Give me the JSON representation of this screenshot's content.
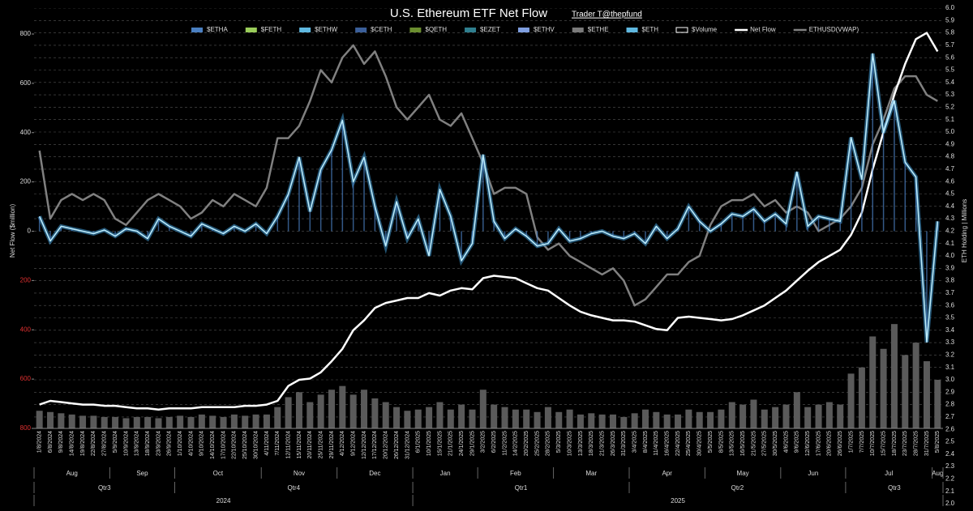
{
  "chart_data": {
    "type": "line",
    "title": "U.S. Ethereum ETF Net Flow",
    "subtitle": "Trader T@thepfund",
    "y_label": "Net Flow ($million)",
    "y2_label": "ETH Holding | Millions",
    "categories": [
      "1/8/2024",
      "6/8/2024",
      "9/8/2024",
      "14/8/2024",
      "19/8/2024",
      "22/8/2024",
      "27/8/2024",
      "5/9/2024",
      "10/9/2024",
      "13/9/2024",
      "18/9/2024",
      "23/9/2024",
      "26/9/2024",
      "1/10/2024",
      "4/10/2024",
      "9/10/2024",
      "14/10/2024",
      "17/10/2024",
      "22/10/2024",
      "25/10/2024",
      "30/10/2024",
      "4/11/2024",
      "7/11/2024",
      "12/11/2024",
      "15/11/2024",
      "20/11/2024",
      "25/11/2024",
      "29/11/2024",
      "4/12/2024",
      "9/12/2024",
      "12/12/2024",
      "17/12/2024",
      "20/12/2024",
      "26/12/2024",
      "31/12/2024",
      "6/1/2025",
      "10/1/2025",
      "15/1/2025",
      "21/1/2025",
      "24/1/2025",
      "29/1/2025",
      "3/2/2025",
      "6/2/2025",
      "11/2/2025",
      "14/2/2025",
      "20/2/2025",
      "25/2/2025",
      "28/2/2025",
      "5/3/2025",
      "10/3/2025",
      "13/3/2025",
      "18/3/2025",
      "21/3/2025",
      "26/3/2025",
      "31/3/2025",
      "3/4/2025",
      "8/4/2025",
      "11/4/2025",
      "16/4/2025",
      "22/4/2025",
      "25/4/2025",
      "30/4/2025",
      "5/5/2025",
      "8/5/2025",
      "13/5/2025",
      "16/5/2025",
      "21/5/2025",
      "27/5/2025",
      "30/5/2025",
      "4/6/2025",
      "9/6/2025",
      "12/6/2025",
      "17/6/2025",
      "20/6/2025",
      "26/6/2025",
      "1/7/2025",
      "7/7/2025",
      "10/7/2025",
      "15/7/2025",
      "18/7/2025",
      "23/7/2025",
      "28/7/2025",
      "31/7/2025",
      "5/8/2025"
    ],
    "months": [
      "Aug",
      "Sep",
      "Oct",
      "Nov",
      "Dec",
      "Jan",
      "Feb",
      "Mar",
      "Apr",
      "May",
      "Jun",
      "Jul",
      "Aug"
    ],
    "quarters": [
      "Qtr3",
      "Qtr4",
      "Qtr1",
      "Qtr2",
      "Qtr3"
    ],
    "years": [
      "2024",
      "2025"
    ],
    "series": [
      {
        "name": "$Volume",
        "kind": "bar",
        "axis": "y2",
        "color": "#5a5a5a",
        "values": [
          2.75,
          2.74,
          2.73,
          2.72,
          2.71,
          2.71,
          2.7,
          2.7,
          2.69,
          2.7,
          2.7,
          2.69,
          2.7,
          2.71,
          2.7,
          2.72,
          2.71,
          2.7,
          2.72,
          2.71,
          2.72,
          2.72,
          2.78,
          2.86,
          2.9,
          2.82,
          2.88,
          2.92,
          2.95,
          2.88,
          2.92,
          2.85,
          2.82,
          2.78,
          2.75,
          2.76,
          2.78,
          2.82,
          2.76,
          2.8,
          2.76,
          2.92,
          2.8,
          2.78,
          2.76,
          2.76,
          2.74,
          2.78,
          2.74,
          2.76,
          2.72,
          2.73,
          2.72,
          2.72,
          2.7,
          2.73,
          2.76,
          2.74,
          2.72,
          2.72,
          2.76,
          2.74,
          2.74,
          2.76,
          2.82,
          2.8,
          2.84,
          2.76,
          2.78,
          2.8,
          2.9,
          2.78,
          2.8,
          2.82,
          2.8,
          3.05,
          3.1,
          3.35,
          3.25,
          3.45,
          3.2,
          3.3,
          3.15,
          3.0
        ]
      },
      {
        "name": "ETHUSD(VWAP)",
        "kind": "line",
        "axis": "y2",
        "color": "#808080",
        "values": [
          4.85,
          4.3,
          4.45,
          4.5,
          4.45,
          4.5,
          4.45,
          4.3,
          4.25,
          4.35,
          4.45,
          4.5,
          4.45,
          4.4,
          4.3,
          4.35,
          4.45,
          4.4,
          4.5,
          4.45,
          4.4,
          4.55,
          4.95,
          4.95,
          5.05,
          5.25,
          5.5,
          5.4,
          5.6,
          5.7,
          5.55,
          5.65,
          5.45,
          5.2,
          5.1,
          5.2,
          5.3,
          5.1,
          5.05,
          5.15,
          4.95,
          4.75,
          4.5,
          4.55,
          4.55,
          4.5,
          4.15,
          4.05,
          4.1,
          4.0,
          3.95,
          3.9,
          3.85,
          3.9,
          3.8,
          3.6,
          3.65,
          3.75,
          3.85,
          3.85,
          3.95,
          4.0,
          4.25,
          4.4,
          4.45,
          4.45,
          4.5,
          4.4,
          4.45,
          4.35,
          4.4,
          4.35,
          4.2,
          4.25,
          4.3,
          4.4,
          4.55,
          4.9,
          5.1,
          5.35,
          5.45,
          5.45,
          5.3,
          5.25
        ]
      },
      {
        "name": "Net Flow",
        "kind": "line",
        "axis": "y2",
        "color": "#ffffff",
        "values": [
          2.8,
          2.83,
          2.82,
          2.81,
          2.8,
          2.8,
          2.79,
          2.79,
          2.78,
          2.77,
          2.77,
          2.76,
          2.77,
          2.77,
          2.77,
          2.78,
          2.78,
          2.78,
          2.78,
          2.79,
          2.79,
          2.8,
          2.83,
          2.95,
          3.0,
          3.01,
          3.06,
          3.15,
          3.25,
          3.4,
          3.48,
          3.58,
          3.62,
          3.64,
          3.66,
          3.66,
          3.7,
          3.68,
          3.72,
          3.74,
          3.73,
          3.82,
          3.84,
          3.83,
          3.82,
          3.78,
          3.74,
          3.72,
          3.66,
          3.6,
          3.55,
          3.52,
          3.5,
          3.48,
          3.48,
          3.47,
          3.44,
          3.41,
          3.4,
          3.5,
          3.51,
          3.5,
          3.49,
          3.48,
          3.49,
          3.52,
          3.56,
          3.6,
          3.66,
          3.72,
          3.8,
          3.88,
          3.95,
          4.0,
          4.05,
          4.17,
          4.35,
          4.7,
          5.0,
          5.3,
          5.55,
          5.75,
          5.8,
          5.65
        ]
      },
      {
        "name": "$ETH",
        "kind": "glow",
        "axis": "y",
        "color": "#bfefff",
        "values": [
          60,
          -40,
          20,
          10,
          0,
          -10,
          5,
          -20,
          10,
          0,
          -30,
          50,
          20,
          0,
          -20,
          30,
          10,
          -10,
          20,
          0,
          30,
          -10,
          60,
          150,
          300,
          80,
          250,
          330,
          450,
          200,
          300,
          100,
          -60,
          120,
          -30,
          50,
          -100,
          170,
          60,
          -120,
          -50,
          310,
          40,
          -30,
          10,
          -20,
          -60,
          -50,
          10,
          -40,
          -30,
          -10,
          0,
          -20,
          -30,
          -10,
          -50,
          20,
          -30,
          10,
          100,
          40,
          0,
          30,
          70,
          60,
          90,
          40,
          70,
          30,
          240,
          20,
          60,
          50,
          40,
          380,
          210,
          720,
          400,
          530,
          280,
          220,
          -450,
          40
        ]
      }
    ],
    "legend_only": [
      {
        "name": "$ETHA",
        "color": "#4a7fc1"
      },
      {
        "name": "$FETH",
        "color": "#9acd5a"
      },
      {
        "name": "$ETHW",
        "color": "#5fb8e0"
      },
      {
        "name": "$CETH",
        "color": "#3b5f9a"
      },
      {
        "name": "$QETH",
        "color": "#6b8e2f"
      },
      {
        "name": "$EZET",
        "color": "#2f7f8f"
      },
      {
        "name": "$ETHV",
        "color": "#7f9fe0"
      },
      {
        "name": "$ETHE",
        "color": "#7a7a7a"
      }
    ],
    "ylim": [
      -800,
      800
    ],
    "yticks": [
      {
        "value": -800,
        "label": "800"
      },
      {
        "value": -600,
        "label": "600"
      },
      {
        "value": -400,
        "label": "400"
      },
      {
        "value": -200,
        "label": "200"
      },
      0,
      200,
      400,
      600,
      800
    ],
    "y2lim": [
      2.0,
      6.0
    ],
    "y2ticks": [
      {
        "value": 2.0,
        "label": "2.0"
      },
      2.1,
      2.2,
      2.3,
      2.4,
      2.5,
      2.6,
      2.7,
      2.8,
      2.9,
      {
        "value": 3.0,
        "label": "3.0"
      },
      3.1,
      3.2,
      3.3,
      3.4,
      3.5,
      3.6,
      3.7,
      3.8,
      3.9,
      {
        "value": 4.0,
        "label": "4.0"
      },
      4.1,
      4.2,
      4.3,
      4.4,
      4.5,
      4.6,
      4.7,
      4.8,
      4.9,
      {
        "value": 5.0,
        "label": "5.0"
      },
      5.1,
      5.2,
      5.3,
      5.4,
      5.5,
      5.6,
      5.7,
      5.8,
      5.9,
      {
        "value": 6.0,
        "label": "6.0"
      }
    ],
    "grid": true
  }
}
